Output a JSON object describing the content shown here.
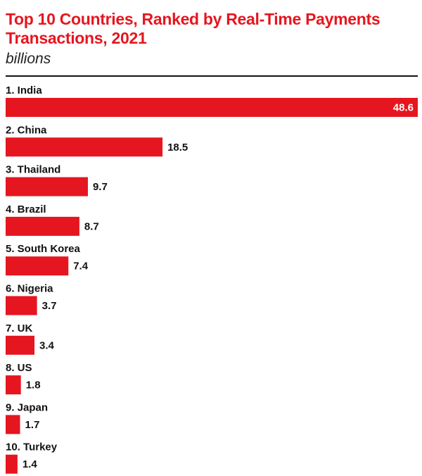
{
  "chart_data": {
    "type": "bar",
    "orientation": "horizontal",
    "title": "Top 10 Countries, Ranked by Real-Time Payments Transactions, 2021",
    "subtitle": "billions",
    "categories": [
      "1. India",
      "2. China",
      "3. Thailand",
      "4. Brazil",
      "5. South Korea",
      "6. Nigeria",
      "7. UK",
      "8. US",
      "9. Japan",
      "10. Turkey"
    ],
    "values": [
      48.6,
      18.5,
      9.7,
      8.7,
      7.4,
      3.7,
      3.4,
      1.8,
      1.7,
      1.4
    ],
    "value_labels": [
      "48.6",
      "18.5",
      "9.7",
      "8.7",
      "7.4",
      "3.7",
      "3.4",
      "1.8",
      "1.7",
      "1.4"
    ],
    "xlim": [
      0,
      48.6
    ],
    "grid": false,
    "legend": "none"
  },
  "colors": {
    "bar": "#e5161f",
    "title": "#e5161f",
    "text": "#111111",
    "inside_label": "#ffffff"
  }
}
